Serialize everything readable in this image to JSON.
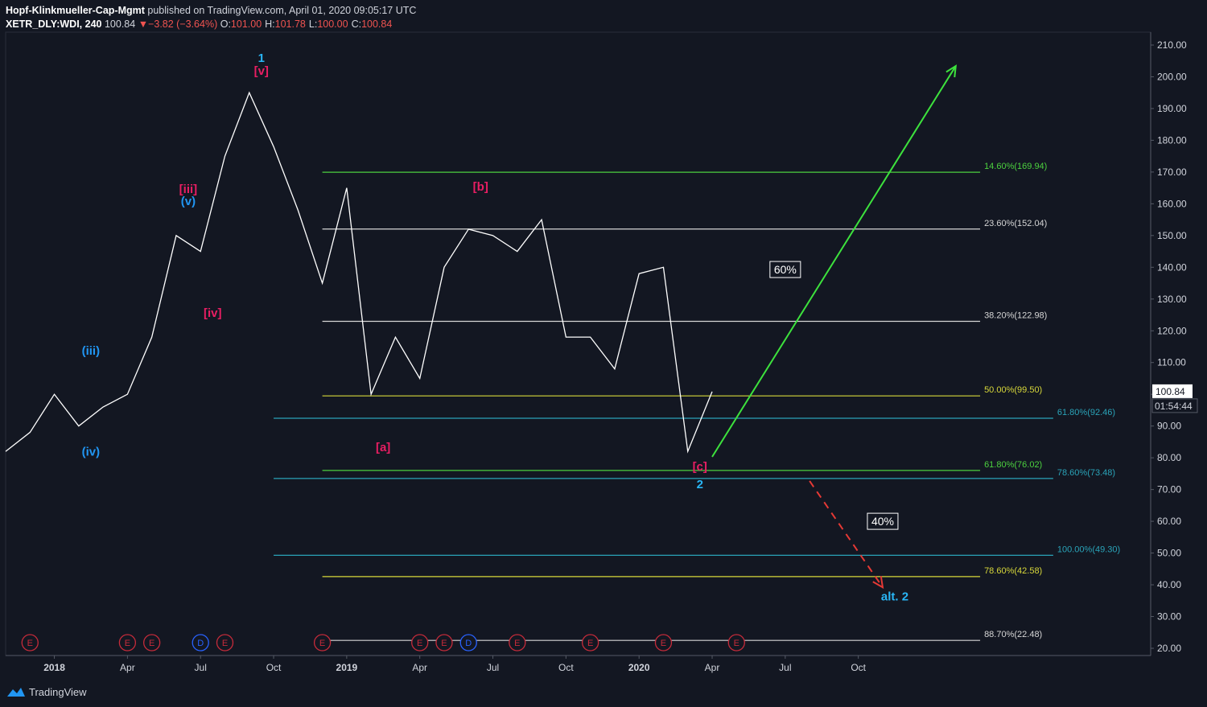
{
  "header": {
    "author": "Hopf-Klinkmueller-Cap-Mgmt",
    "published": "published on TradingView.com, April 01, 2020 09:05:17 UTC",
    "symbol": "XETR_DLY:WDI, 240",
    "last": "100.84",
    "arrow": "▼",
    "change": "−3.82 (−3.64%)",
    "ohlc": [
      {
        "label": "O:",
        "value": "101.00"
      },
      {
        "label": "H:",
        "value": "101.78"
      },
      {
        "label": "L:",
        "value": "100.00"
      },
      {
        "label": "C:",
        "value": "100.84"
      }
    ]
  },
  "chart_data": {
    "type": "line",
    "x": [
      "2017-11",
      "2017-12",
      "2018-01",
      "2018-02",
      "2018-03",
      "2018-04",
      "2018-05",
      "2018-06",
      "2018-07",
      "2018-08",
      "2018-09",
      "2018-10",
      "2018-11",
      "2018-12",
      "2019-01",
      "2019-02",
      "2019-03",
      "2019-04",
      "2019-05",
      "2019-06",
      "2019-07",
      "2019-08",
      "2019-09",
      "2019-10",
      "2019-11",
      "2019-12",
      "2020-01",
      "2020-02",
      "2020-03",
      "2020-04"
    ],
    "series": [
      {
        "color": "#ffffff",
        "values": [
          82,
          88,
          100,
          90,
          96,
          100,
          118,
          150,
          145,
          175,
          195,
          178,
          158,
          135,
          165,
          100,
          118,
          105,
          140,
          152,
          150,
          145,
          155,
          118,
          118,
          108,
          138,
          140,
          82,
          100.84
        ]
      }
    ],
    "countdown": "01:54:44",
    "xlim": [
      "2017-11",
      "2021-10"
    ],
    "xticks": [
      {
        "value": "2018-01",
        "label": "2018"
      },
      {
        "value": "2018-04",
        "label": "Apr"
      },
      {
        "value": "2018-07",
        "label": "Jul"
      },
      {
        "value": "2018-10",
        "label": "Oct"
      },
      {
        "value": "2019-01",
        "label": "2019"
      },
      {
        "value": "2019-04",
        "label": "Apr"
      },
      {
        "value": "2019-07",
        "label": "Jul"
      },
      {
        "value": "2019-10",
        "label": "Oct"
      },
      {
        "value": "2020-01",
        "label": "2020"
      },
      {
        "value": "2020-04",
        "label": "Apr"
      },
      {
        "value": "2020-07",
        "label": "Jul"
      },
      {
        "value": "2020-10",
        "label": "Oct"
      }
    ],
    "ylim": [
      17.72,
      214.05
    ],
    "yticks": [
      {
        "value": 20,
        "label": "20.00"
      },
      {
        "value": 30,
        "label": "30.00"
      },
      {
        "value": 40,
        "label": "40.00"
      },
      {
        "value": 50,
        "label": "50.00"
      },
      {
        "value": 60,
        "label": "60.00"
      },
      {
        "value": 70,
        "label": "70.00"
      },
      {
        "value": 80,
        "label": "80.00"
      },
      {
        "value": 90,
        "label": "90.00"
      },
      {
        "value": 100,
        "label": "100.00"
      },
      {
        "value": 110,
        "label": "110.00"
      },
      {
        "value": 120,
        "label": "120.00"
      },
      {
        "value": 130,
        "label": "130.00"
      },
      {
        "value": 140,
        "label": "140.00"
      },
      {
        "value": 150,
        "label": "150.00"
      },
      {
        "value": 160,
        "label": "160.00"
      },
      {
        "value": 170,
        "label": "170.00"
      },
      {
        "value": 180,
        "label": "180.00"
      },
      {
        "value": 190,
        "label": "190.00"
      },
      {
        "value": 200,
        "label": "200.00"
      },
      {
        "value": 210,
        "label": "210.00"
      }
    ],
    "levels": [
      {
        "label": "14.60%(169.94)",
        "value": 169.94,
        "color": "#4cd13f",
        "start": "2018-12",
        "end": "2021-03"
      },
      {
        "label": "23.60%(152.04)",
        "value": 152.04,
        "color": "#d6d6d6",
        "start": "2018-12",
        "end": "2021-03"
      },
      {
        "label": "38.20%(122.98)",
        "value": 122.98,
        "color": "#d6d6d6",
        "start": "2018-12",
        "end": "2021-03"
      },
      {
        "label": "50.00%(99.50)",
        "value": 99.5,
        "color": "#d8d83a",
        "start": "2018-12",
        "end": "2021-03"
      },
      {
        "label": "61.80%(92.46)",
        "value": 92.46,
        "color": "#2aa3b8",
        "start": "2018-10",
        "end": "2021-06"
      },
      {
        "label": "61.80%(76.02)",
        "value": 76.02,
        "color": "#4cd13f",
        "start": "2018-12",
        "end": "2021-03"
      },
      {
        "label": "78.60%(73.48)",
        "value": 73.48,
        "color": "#2aa3b8",
        "start": "2018-10",
        "end": "2021-06"
      },
      {
        "label": "100.00%(49.30)",
        "value": 49.3,
        "color": "#2aa3b8",
        "start": "2018-10",
        "end": "2021-06"
      },
      {
        "label": "78.60%(42.58)",
        "value": 42.58,
        "color": "#d8d83a",
        "start": "2018-12",
        "end": "2021-03"
      },
      {
        "label": "88.70%(22.48)",
        "value": 22.48,
        "color": "#d6d6d6",
        "start": "2018-12",
        "end": "2021-03"
      }
    ],
    "wave_labels": [
      {
        "text": "1",
        "date": "2018-09",
        "price": 206,
        "color": "#29b6f6"
      },
      {
        "text": "[v]",
        "date": "2018-09",
        "price": 201.9,
        "color": "#e91e63"
      },
      {
        "text": "[iii]",
        "date": "2018-06",
        "price": 164.6,
        "color": "#e91e63"
      },
      {
        "text": "(v)",
        "date": "2018-06",
        "price": 160.8,
        "color": "#2196f3"
      },
      {
        "text": "[iv]",
        "date": "2018-07",
        "price": 125.6,
        "color": "#e91e63"
      },
      {
        "text": "(iii)",
        "date": "2018-02",
        "price": 113.7,
        "color": "#2196f3"
      },
      {
        "text": "(iv)",
        "date": "2018-02",
        "price": 82,
        "color": "#2196f3"
      },
      {
        "text": "[a]",
        "date": "2019-02",
        "price": 83.3,
        "color": "#e91e63"
      },
      {
        "text": "[b]",
        "date": "2019-06",
        "price": 165.4,
        "color": "#e91e63"
      },
      {
        "text": "[c]",
        "date": "2020-03",
        "price": 77.2,
        "color": "#e91e63"
      },
      {
        "text": "2",
        "date": "2020-03",
        "price": 71.7,
        "color": "#29b6f6"
      },
      {
        "text": "alt. 2",
        "date": "2020-11",
        "price": 36.4,
        "color": "#29b6f6"
      }
    ],
    "scenarios": [
      {
        "text": "60%",
        "date": "2020-07",
        "price": 139.3
      },
      {
        "text": "40%",
        "date": "2020-11",
        "price": 60
      }
    ],
    "projections": [
      {
        "from": {
          "date": "2020-04",
          "price": 80.3
        },
        "to": {
          "date": "2021-02",
          "price": 203.4
        },
        "color": "#3de23d",
        "style": "solid"
      },
      {
        "from": {
          "date": "2020-08",
          "price": 72.7
        },
        "to": {
          "date": "2020-11",
          "price": 39.2
        },
        "color": "#e53935",
        "style": "dashed"
      }
    ],
    "events": [
      {
        "text": "E",
        "date": "2017-12"
      },
      {
        "text": "E",
        "date": "2018-04"
      },
      {
        "text": "E",
        "date": "2018-05"
      },
      {
        "text": "D",
        "date": "2018-07"
      },
      {
        "text": "E",
        "date": "2018-08"
      },
      {
        "text": "E",
        "date": "2018-12"
      },
      {
        "text": "E",
        "date": "2019-04"
      },
      {
        "text": "E",
        "date": "2019-05"
      },
      {
        "text": "D",
        "date": "2019-06"
      },
      {
        "text": "E",
        "date": "2019-08"
      },
      {
        "text": "E",
        "date": "2019-11"
      },
      {
        "text": "E",
        "date": "2020-02"
      },
      {
        "text": "E",
        "date": "2020-05"
      }
    ]
  },
  "footer": {
    "brand": "TradingView"
  }
}
